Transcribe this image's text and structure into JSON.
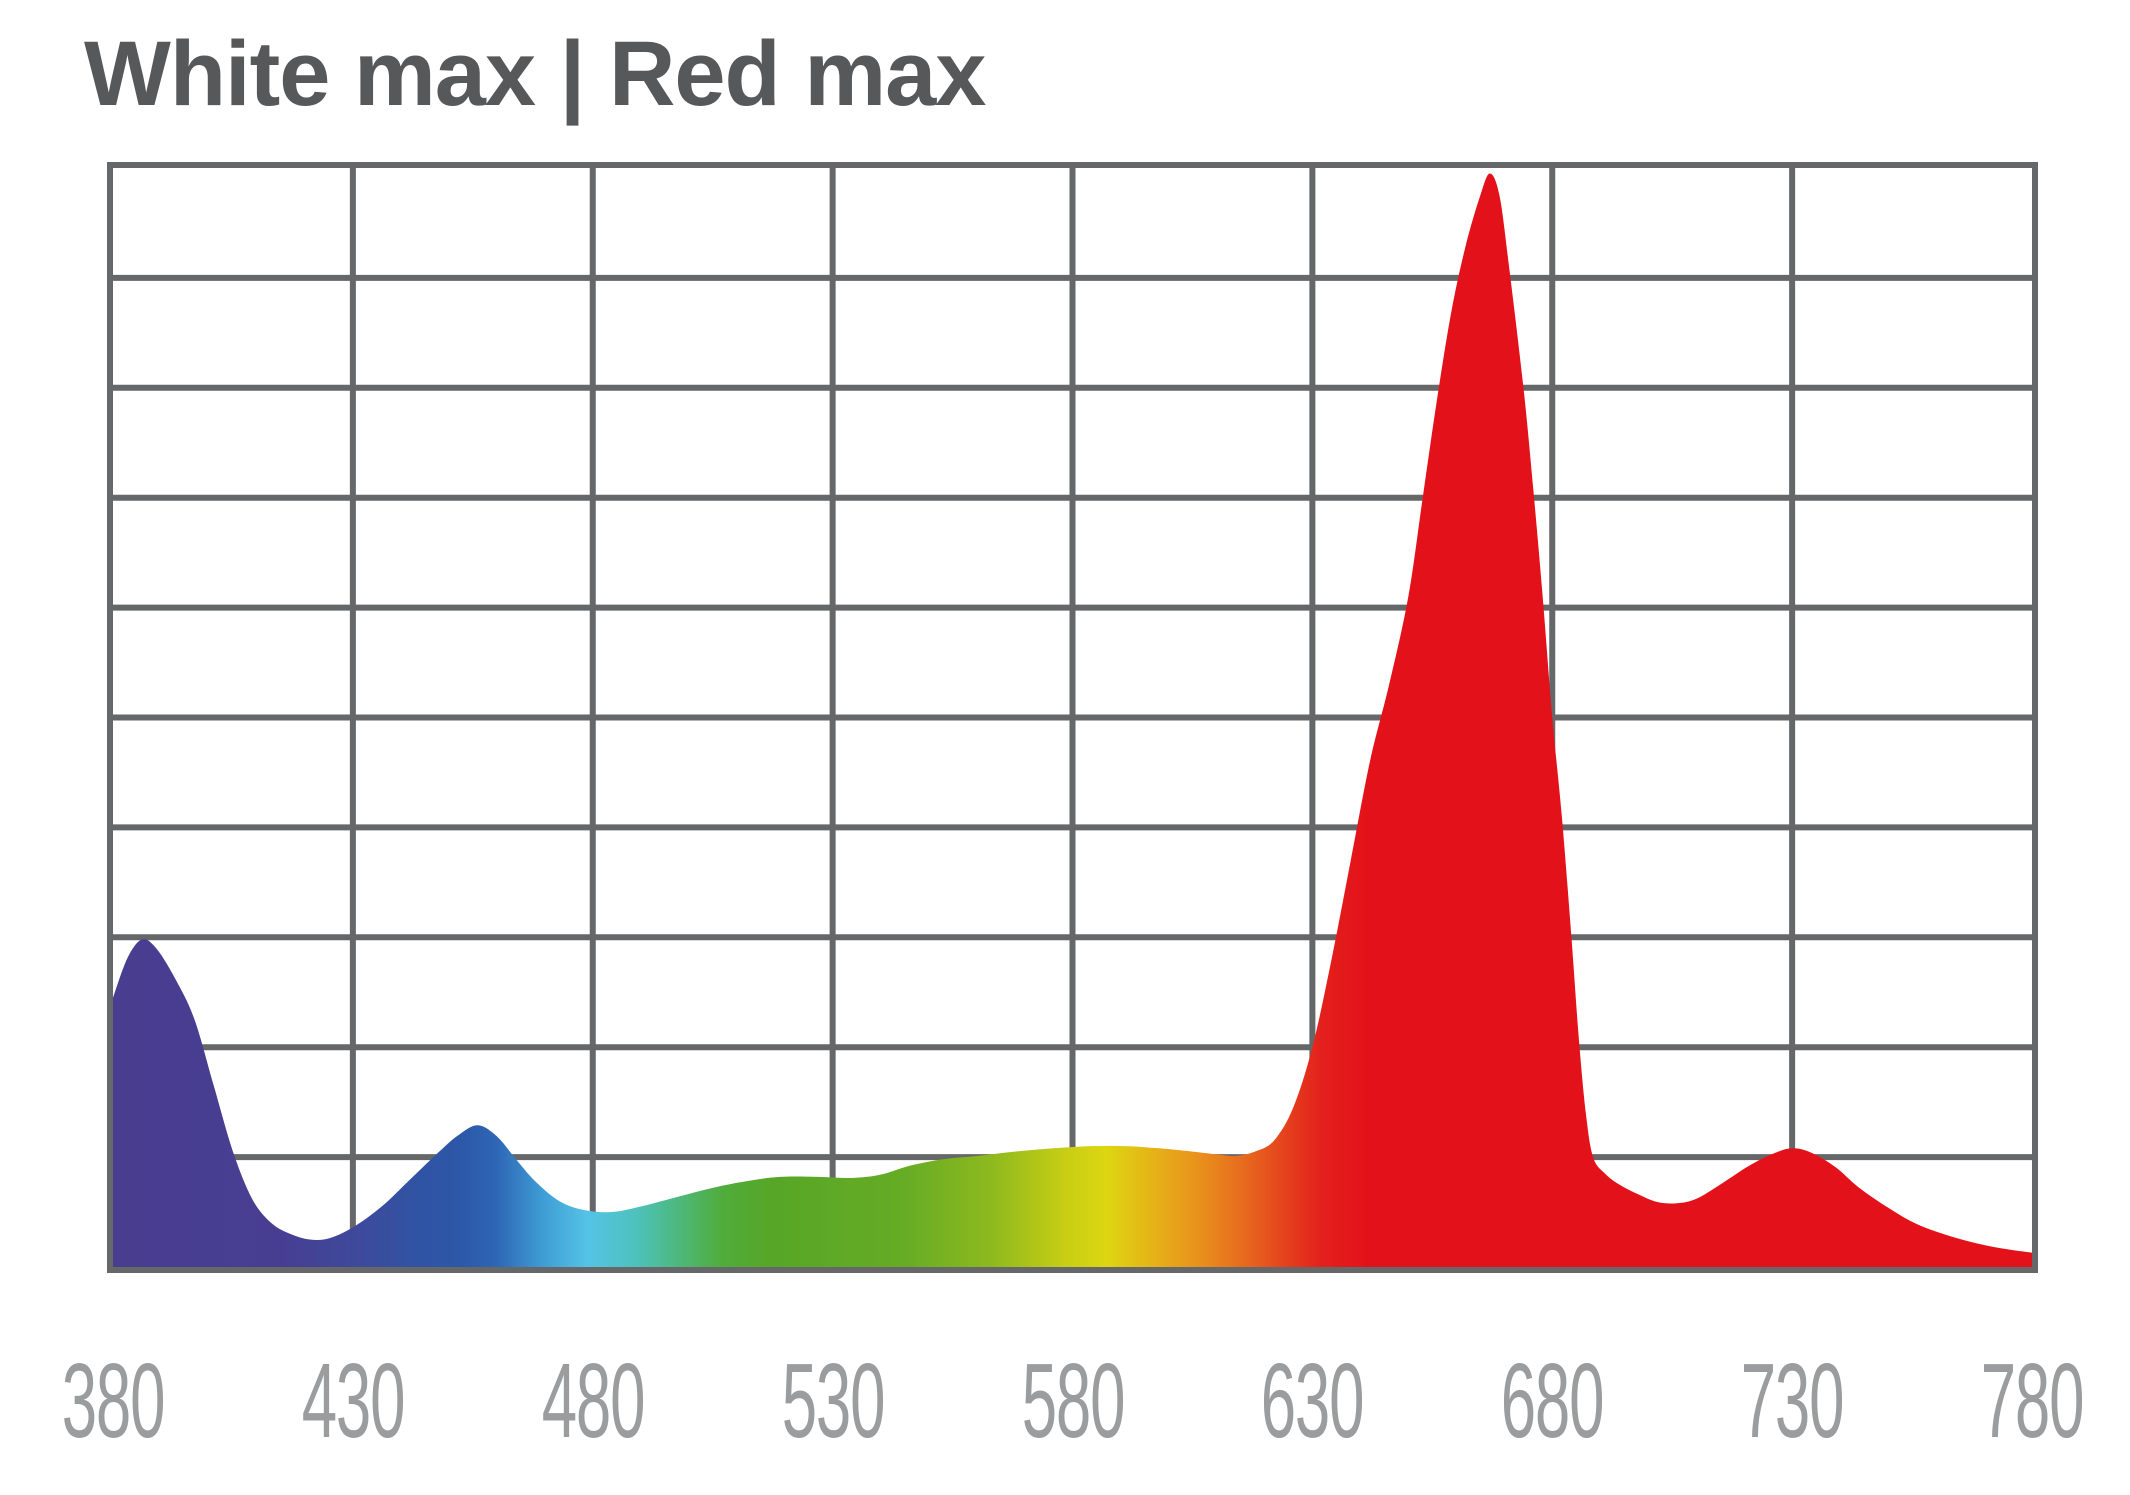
{
  "title": {
    "text": "White max | Red max",
    "color": "#57585a"
  },
  "axis": {
    "tick_labels": [
      "380",
      "430",
      "480",
      "530",
      "580",
      "630",
      "680",
      "730",
      "780"
    ],
    "label_color": "#9b9c9e"
  },
  "chart_data": {
    "type": "area",
    "title": "White max | Red max",
    "x_tick_labels": [
      "380",
      "430",
      "480",
      "530",
      "580",
      "630",
      "680",
      "730",
      "780"
    ],
    "x_range_nm": [
      380,
      780
    ],
    "y_range_relative": [
      0,
      1
    ],
    "grid": {
      "cols": 8,
      "rows": 10,
      "line_color": "#666769",
      "line_width": 6
    },
    "legend": "none",
    "series": [
      {
        "name": "White max | Red max",
        "points": [
          [
            380,
            0.245
          ],
          [
            383,
            0.281
          ],
          [
            386,
            0.298
          ],
          [
            389,
            0.29
          ],
          [
            393,
            0.262
          ],
          [
            397,
            0.225
          ],
          [
            401,
            0.165
          ],
          [
            405,
            0.105
          ],
          [
            409,
            0.062
          ],
          [
            413,
            0.04
          ],
          [
            417,
            0.03
          ],
          [
            421,
            0.025
          ],
          [
            425,
            0.026
          ],
          [
            430,
            0.036
          ],
          [
            436,
            0.055
          ],
          [
            442,
            0.08
          ],
          [
            448,
            0.105
          ],
          [
            452,
            0.12
          ],
          [
            456,
            0.129
          ],
          [
            460,
            0.119
          ],
          [
            464,
            0.098
          ],
          [
            468,
            0.078
          ],
          [
            473,
            0.06
          ],
          [
            478,
            0.052
          ],
          [
            484,
            0.05
          ],
          [
            490,
            0.055
          ],
          [
            497,
            0.063
          ],
          [
            505,
            0.072
          ],
          [
            512,
            0.078
          ],
          [
            519,
            0.082
          ],
          [
            527,
            0.082
          ],
          [
            534,
            0.081
          ],
          [
            540,
            0.084
          ],
          [
            546,
            0.092
          ],
          [
            553,
            0.098
          ],
          [
            560,
            0.101
          ],
          [
            568,
            0.105
          ],
          [
            576,
            0.108
          ],
          [
            584,
            0.11
          ],
          [
            591,
            0.11
          ],
          [
            598,
            0.108
          ],
          [
            605,
            0.105
          ],
          [
            611,
            0.102
          ],
          [
            614,
            0.101
          ],
          [
            618,
            0.105
          ],
          [
            622,
            0.115
          ],
          [
            626,
            0.145
          ],
          [
            630,
            0.2
          ],
          [
            634,
            0.28
          ],
          [
            638,
            0.37
          ],
          [
            642,
            0.46
          ],
          [
            646,
            0.53
          ],
          [
            650,
            0.61
          ],
          [
            653,
            0.7
          ],
          [
            656,
            0.79
          ],
          [
            659,
            0.87
          ],
          [
            662,
            0.93
          ],
          [
            665,
            0.975
          ],
          [
            667,
            0.995
          ],
          [
            669,
            0.975
          ],
          [
            671,
            0.91
          ],
          [
            674,
            0.8
          ],
          [
            676,
            0.71
          ],
          [
            678,
            0.61
          ],
          [
            680,
            0.5
          ],
          [
            682,
            0.41
          ],
          [
            684,
            0.3
          ],
          [
            685.5,
            0.21
          ],
          [
            687,
            0.14
          ],
          [
            688.5,
            0.1
          ],
          [
            691,
            0.085
          ],
          [
            694,
            0.075
          ],
          [
            698,
            0.066
          ],
          [
            702,
            0.059
          ],
          [
            706,
            0.058
          ],
          [
            710,
            0.062
          ],
          [
            715,
            0.075
          ],
          [
            721,
            0.092
          ],
          [
            726,
            0.103
          ],
          [
            730,
            0.108
          ],
          [
            734,
            0.104
          ],
          [
            739,
            0.091
          ],
          [
            744,
            0.072
          ],
          [
            750,
            0.054
          ],
          [
            756,
            0.039
          ],
          [
            763,
            0.028
          ],
          [
            770,
            0.02
          ],
          [
            775,
            0.016
          ],
          [
            780,
            0.013
          ]
        ]
      }
    ],
    "gradient_stops": [
      [
        0.0,
        "#493d90"
      ],
      [
        0.0875,
        "#473e92"
      ],
      [
        0.13,
        "#3d4a9c"
      ],
      [
        0.1575,
        "#3153a3"
      ],
      [
        0.18,
        "#2d57a8"
      ],
      [
        0.2,
        "#2e66b5"
      ],
      [
        0.225,
        "#3f9fd5"
      ],
      [
        0.2475,
        "#55c3e6"
      ],
      [
        0.2725,
        "#4dc2bc"
      ],
      [
        0.295,
        "#4db87c"
      ],
      [
        0.3175,
        "#50ac3b"
      ],
      [
        0.3425,
        "#57a627"
      ],
      [
        0.4125,
        "#66ac25"
      ],
      [
        0.4575,
        "#8db91e"
      ],
      [
        0.495,
        "#c6cd15"
      ],
      [
        0.5175,
        "#ddd611"
      ],
      [
        0.54,
        "#e5b517"
      ],
      [
        0.565,
        "#e8921c"
      ],
      [
        0.5875,
        "#e76d1e"
      ],
      [
        0.61,
        "#e5431d"
      ],
      [
        0.63,
        "#e3201c"
      ],
      [
        0.655,
        "#e31119"
      ],
      [
        1.0,
        "#e31119"
      ]
    ]
  }
}
